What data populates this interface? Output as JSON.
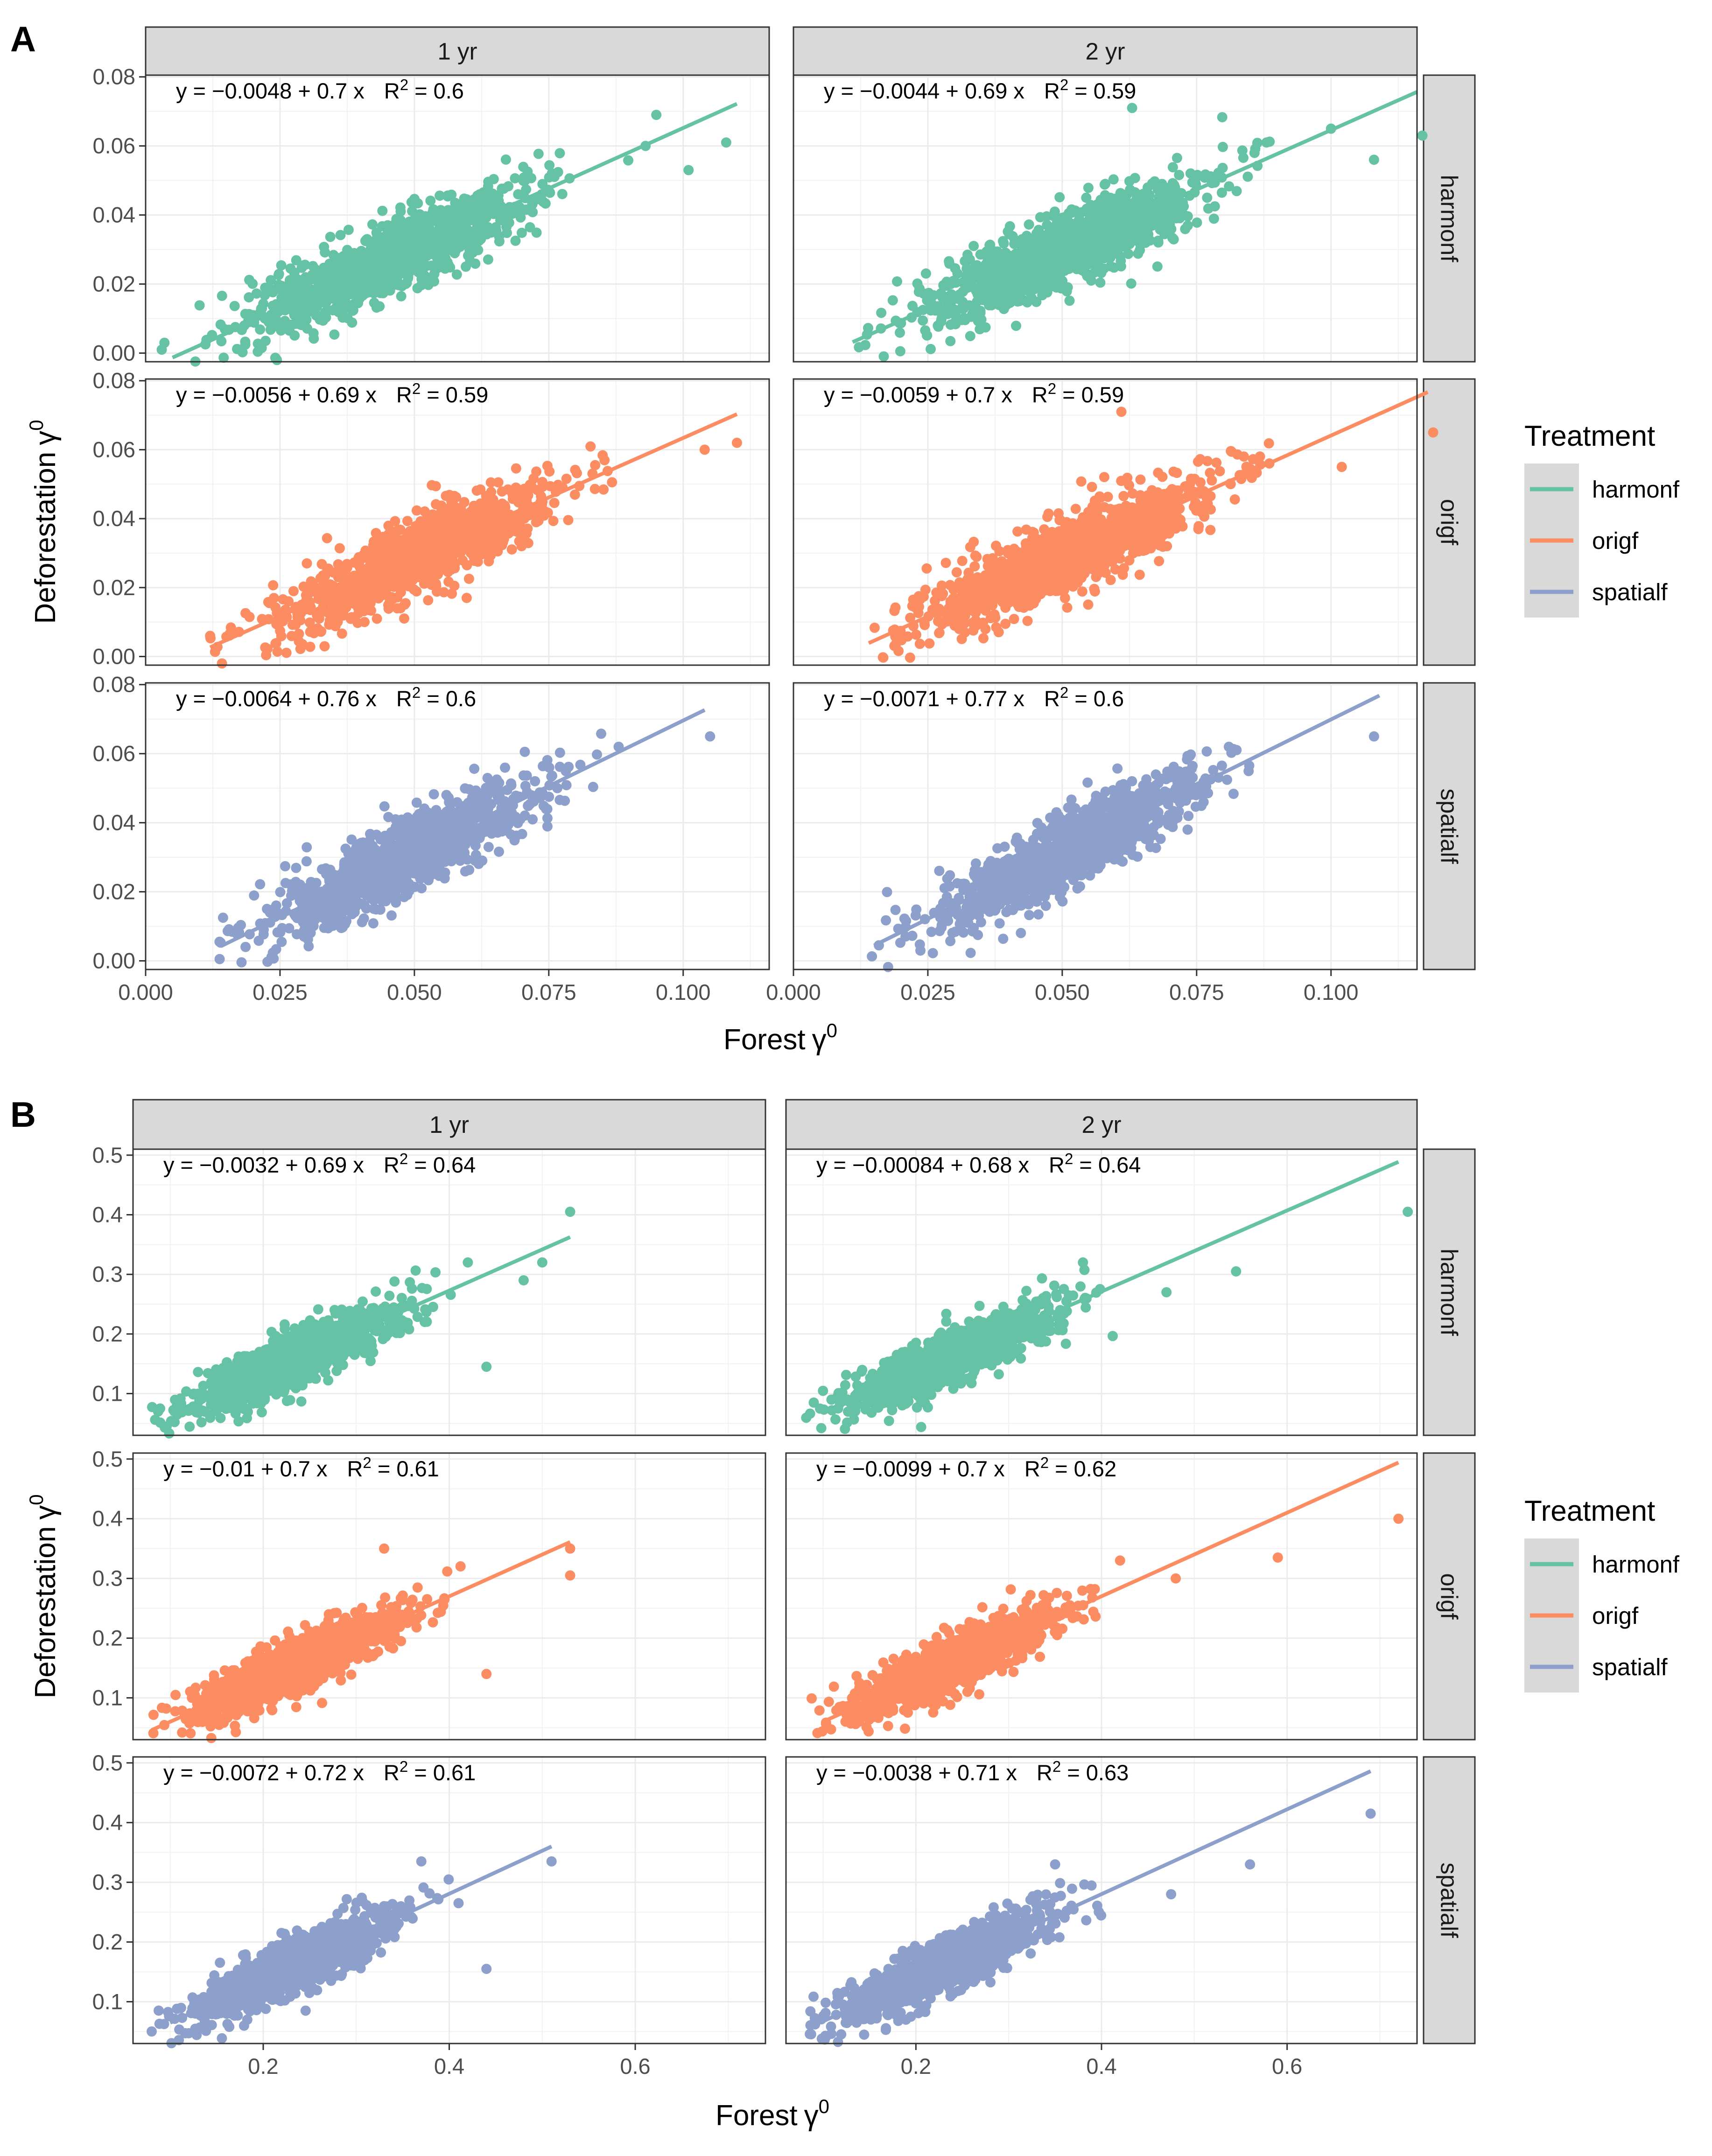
{
  "figure": {
    "x_title": "Forest",
    "y_title": "Deforestation",
    "gamma_symbol": "γ",
    "gamma_superscript": "0"
  },
  "legend": {
    "title": "Treatment",
    "items": [
      {
        "label": "harmonf",
        "color": "#66C2A5"
      },
      {
        "label": "origf",
        "color": "#FC8D62"
      },
      {
        "label": "spatialf",
        "color": "#8DA0CB"
      }
    ]
  },
  "chart_data": [
    {
      "panel_label": "A",
      "type": "scatter",
      "title": "",
      "xlabel": "Forest γ0",
      "ylabel": "Deforestation γ0",
      "columns": [
        "1 yr",
        "2 yr"
      ],
      "rows": [
        "harmonf",
        "origf",
        "spatialf"
      ],
      "xlim": [
        0.0,
        0.116
      ],
      "ylim": [
        -0.0025,
        0.0805
      ],
      "x_ticks": [
        0.0,
        0.025,
        0.05,
        0.075,
        0.1
      ],
      "x_tick_labels": [
        "0.000",
        "0.025",
        "0.050",
        "0.075",
        "0.100"
      ],
      "y_ticks": [
        0.0,
        0.02,
        0.04,
        0.06,
        0.08
      ],
      "y_tick_labels": [
        "0.00",
        "0.02",
        "0.04",
        "0.06",
        "0.08"
      ],
      "grid": true,
      "panels": [
        {
          "column": "1 yr",
          "row": "harmonf",
          "intercept": -0.0048,
          "slope": 0.7,
          "r2": 0.6,
          "fit_x": [
            0.005,
            0.11
          ],
          "eq_text": "y = −0.0048 + 0.7 x",
          "r2_label": "R",
          "r2_value_text": " = 0.6",
          "cloud": {
            "x_center": 0.045,
            "x_sd": 0.013,
            "resid_sd": 0.0052,
            "x_min": 0.002,
            "x_max": 0.09
          },
          "outliers": [
            {
              "x": 0.0035,
              "y": 0.003
            },
            {
              "x": 0.003,
              "y": 0.001
            },
            {
              "x": 0.095,
              "y": 0.069
            },
            {
              "x": 0.108,
              "y": 0.061
            },
            {
              "x": 0.101,
              "y": 0.053
            },
            {
              "x": 0.093,
              "y": 0.06
            }
          ]
        },
        {
          "column": "2 yr",
          "row": "harmonf",
          "intercept": -0.0044,
          "slope": 0.69,
          "r2": 0.59,
          "fit_x": [
            0.011,
            0.116
          ],
          "eq_text": "y = −0.0044 + 0.69 x",
          "r2_label": "R",
          "r2_value_text": " = 0.59",
          "cloud": {
            "x_center": 0.05,
            "x_sd": 0.013,
            "resid_sd": 0.0052,
            "x_min": 0.012,
            "x_max": 0.09
          },
          "outliers": [
            {
              "x": 0.117,
              "y": 0.063
            },
            {
              "x": 0.108,
              "y": 0.056
            },
            {
              "x": 0.1,
              "y": 0.065
            },
            {
              "x": 0.088,
              "y": 0.061
            },
            {
              "x": 0.063,
              "y": 0.071
            }
          ]
        },
        {
          "column": "1 yr",
          "row": "origf",
          "intercept": -0.0056,
          "slope": 0.69,
          "r2": 0.59,
          "fit_x": [
            0.012,
            0.11
          ],
          "eq_text": "y = −0.0056 + 0.69 x",
          "r2_label": "R",
          "r2_value_text": " = 0.59",
          "cloud": {
            "x_center": 0.05,
            "x_sd": 0.013,
            "resid_sd": 0.0052,
            "x_min": 0.012,
            "x_max": 0.088
          },
          "outliers": [
            {
              "x": 0.11,
              "y": 0.062
            },
            {
              "x": 0.104,
              "y": 0.06
            },
            {
              "x": 0.012,
              "y": 0.006
            }
          ]
        },
        {
          "column": "2 yr",
          "row": "origf",
          "intercept": -0.0059,
          "slope": 0.7,
          "r2": 0.59,
          "fit_x": [
            0.014,
            0.118
          ],
          "eq_text": "y = −0.0059 + 0.7 x",
          "r2_label": "R",
          "r2_value_text": " = 0.59",
          "cloud": {
            "x_center": 0.05,
            "x_sd": 0.013,
            "resid_sd": 0.0052,
            "x_min": 0.014,
            "x_max": 0.09
          },
          "outliers": [
            {
              "x": 0.119,
              "y": 0.065
            },
            {
              "x": 0.102,
              "y": 0.055
            },
            {
              "x": 0.061,
              "y": 0.071
            }
          ]
        },
        {
          "column": "1 yr",
          "row": "spatialf",
          "intercept": -0.0064,
          "slope": 0.76,
          "r2": 0.6,
          "fit_x": [
            0.014,
            0.104
          ],
          "eq_text": "y = −0.0064 + 0.76 x",
          "r2_label": "R",
          "r2_value_text": " = 0.6",
          "cloud": {
            "x_center": 0.048,
            "x_sd": 0.012,
            "resid_sd": 0.0052,
            "x_min": 0.013,
            "x_max": 0.088
          },
          "outliers": [
            {
              "x": 0.105,
              "y": 0.065
            },
            {
              "x": 0.088,
              "y": 0.062
            }
          ]
        },
        {
          "column": "2 yr",
          "row": "spatialf",
          "intercept": -0.0071,
          "slope": 0.77,
          "r2": 0.6,
          "fit_x": [
            0.015,
            0.109
          ],
          "eq_text": "y = −0.0071 + 0.77 x",
          "r2_label": "R",
          "r2_value_text": " = 0.6",
          "cloud": {
            "x_center": 0.05,
            "x_sd": 0.012,
            "resid_sd": 0.0052,
            "x_min": 0.014,
            "x_max": 0.085
          },
          "outliers": [
            {
              "x": 0.108,
              "y": 0.065
            },
            {
              "x": 0.081,
              "y": 0.062
            }
          ]
        }
      ]
    },
    {
      "panel_label": "B",
      "type": "scatter",
      "title": "",
      "xlabel": "Forest γ0",
      "ylabel": "Deforestation γ0",
      "columns": [
        "1 yr",
        "2 yr"
      ],
      "rows": [
        "harmonf",
        "origf",
        "spatialf"
      ],
      "xlim": [
        0.06,
        0.74
      ],
      "ylim": [
        0.03,
        0.51
      ],
      "x_ticks": [
        0.2,
        0.4,
        0.6
      ],
      "x_tick_labels": [
        "0.2",
        "0.4",
        "0.6"
      ],
      "y_ticks": [
        0.1,
        0.2,
        0.3,
        0.4,
        0.5
      ],
      "y_tick_labels": [
        "0.1",
        "0.2",
        "0.3",
        "0.4",
        "0.5"
      ],
      "grid": true,
      "panels": [
        {
          "column": "1 yr",
          "row": "harmonf",
          "intercept": -0.0032,
          "slope": 0.69,
          "r2": 0.64,
          "fit_x": [
            0.1,
            0.53
          ],
          "eq_text": "y = −0.0032 + 0.69 x",
          "r2_label": "R",
          "r2_value_text": " = 0.64",
          "cloud": {
            "x_center": 0.23,
            "x_sd": 0.055,
            "resid_sd": 0.022,
            "x_min": 0.08,
            "x_max": 0.42
          },
          "outliers": [
            {
              "x": 0.53,
              "y": 0.405
            },
            {
              "x": 0.5,
              "y": 0.32
            },
            {
              "x": 0.48,
              "y": 0.29
            },
            {
              "x": 0.42,
              "y": 0.32
            },
            {
              "x": 0.44,
              "y": 0.145
            }
          ]
        },
        {
          "column": "2 yr",
          "row": "harmonf",
          "intercept": -0.00084,
          "slope": 0.68,
          "r2": 0.64,
          "fit_x": [
            0.1,
            0.72
          ],
          "eq_text": "y = −0.00084 + 0.68 x",
          "r2_label": "R",
          "r2_value_text": " = 0.64",
          "cloud": {
            "x_center": 0.24,
            "x_sd": 0.055,
            "resid_sd": 0.022,
            "x_min": 0.08,
            "x_max": 0.42
          },
          "outliers": [
            {
              "x": 0.73,
              "y": 0.405
            },
            {
              "x": 0.545,
              "y": 0.305
            },
            {
              "x": 0.47,
              "y": 0.27
            },
            {
              "x": 0.38,
              "y": 0.32
            }
          ]
        },
        {
          "column": "1 yr",
          "row": "origf",
          "intercept": -0.01,
          "slope": 0.7,
          "r2": 0.61,
          "fit_x": [
            0.08,
            0.53
          ],
          "eq_text": "y = −0.01 + 0.7 x",
          "r2_label": "R",
          "r2_value_text": " = 0.61",
          "cloud": {
            "x_center": 0.24,
            "x_sd": 0.055,
            "resid_sd": 0.022,
            "x_min": 0.08,
            "x_max": 0.42
          },
          "outliers": [
            {
              "x": 0.53,
              "y": 0.35
            },
            {
              "x": 0.53,
              "y": 0.305
            },
            {
              "x": 0.44,
              "y": 0.14
            },
            {
              "x": 0.33,
              "y": 0.35
            }
          ]
        },
        {
          "column": "2 yr",
          "row": "origf",
          "intercept": -0.0099,
          "slope": 0.7,
          "r2": 0.62,
          "fit_x": [
            0.1,
            0.72
          ],
          "eq_text": "y = −0.0099 + 0.7 x",
          "r2_label": "R",
          "r2_value_text": " = 0.62",
          "cloud": {
            "x_center": 0.24,
            "x_sd": 0.055,
            "resid_sd": 0.022,
            "x_min": 0.08,
            "x_max": 0.42
          },
          "outliers": [
            {
              "x": 0.72,
              "y": 0.4
            },
            {
              "x": 0.59,
              "y": 0.335
            },
            {
              "x": 0.48,
              "y": 0.3
            },
            {
              "x": 0.42,
              "y": 0.33
            }
          ]
        },
        {
          "column": "1 yr",
          "row": "spatialf",
          "intercept": -0.0072,
          "slope": 0.72,
          "r2": 0.61,
          "fit_x": [
            0.1,
            0.51
          ],
          "eq_text": "y = −0.0072 + 0.72 x",
          "r2_label": "R",
          "r2_value_text": " = 0.61",
          "cloud": {
            "x_center": 0.23,
            "x_sd": 0.055,
            "resid_sd": 0.022,
            "x_min": 0.08,
            "x_max": 0.42
          },
          "outliers": [
            {
              "x": 0.51,
              "y": 0.335
            },
            {
              "x": 0.44,
              "y": 0.155
            },
            {
              "x": 0.41,
              "y": 0.265
            },
            {
              "x": 0.37,
              "y": 0.335
            }
          ]
        },
        {
          "column": "2 yr",
          "row": "spatialf",
          "intercept": -0.0038,
          "slope": 0.71,
          "r2": 0.63,
          "fit_x": [
            0.1,
            0.69
          ],
          "eq_text": "y = −0.0038 + 0.71 x",
          "r2_label": "R",
          "r2_value_text": " = 0.63",
          "cloud": {
            "x_center": 0.23,
            "x_sd": 0.055,
            "resid_sd": 0.022,
            "x_min": 0.08,
            "x_max": 0.4
          },
          "outliers": [
            {
              "x": 0.69,
              "y": 0.415
            },
            {
              "x": 0.56,
              "y": 0.33
            },
            {
              "x": 0.475,
              "y": 0.28
            },
            {
              "x": 0.35,
              "y": 0.33
            }
          ]
        }
      ]
    }
  ]
}
